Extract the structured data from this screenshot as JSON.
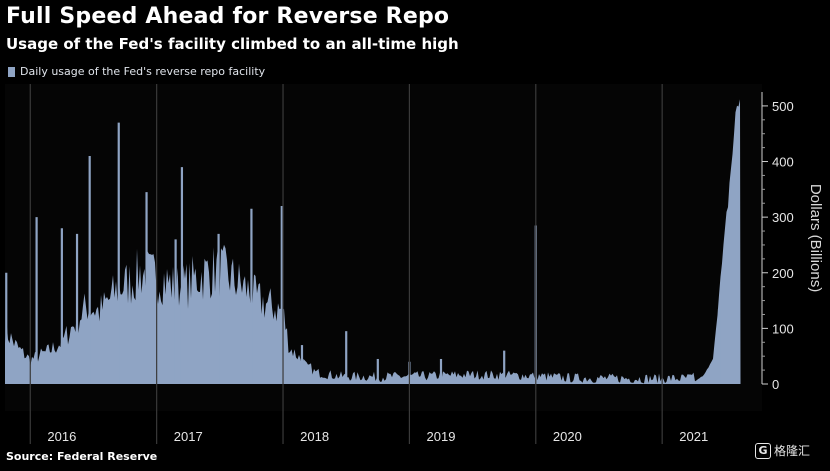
{
  "title": "Full Speed Ahead for Reverse Repo",
  "subtitle": "Usage of the Fed's facility climbed to an all-time high",
  "source": "Source: Federal Reserve",
  "watermark": {
    "logo_letter": "G",
    "text": "格隆汇"
  },
  "colors": {
    "bar": "#8fa4c4",
    "background": "#000000",
    "divider": "#3a3a3a",
    "text": "#ffffff"
  },
  "chart_data": {
    "type": "area",
    "legend": "Daily usage of the Fed's reverse repo facility",
    "ylabel": "Dollars (Billions)",
    "ylim": [
      0,
      525
    ],
    "yticks": [
      0,
      100,
      200,
      300,
      400,
      500
    ],
    "xlim": [
      2015.55,
      2021.54
    ],
    "year_labels": [
      {
        "label": "2016",
        "x": 2016.0
      },
      {
        "label": "2017",
        "x": 2017.0
      },
      {
        "label": "2018",
        "x": 2018.0
      },
      {
        "label": "2019",
        "x": 2019.0
      },
      {
        "label": "2020",
        "x": 2020.0
      },
      {
        "label": "2021",
        "x": 2021.0
      }
    ],
    "dividers": [
      2015.75,
      2016.75,
      2017.75,
      2018.75,
      2019.75,
      2020.75
    ],
    "baseline": [
      [
        2015.55,
        90
      ],
      [
        2015.65,
        60
      ],
      [
        2015.75,
        40
      ],
      [
        2015.9,
        55
      ],
      [
        2016.0,
        70
      ],
      [
        2016.1,
        100
      ],
      [
        2016.2,
        130
      ],
      [
        2016.3,
        120
      ],
      [
        2016.45,
        160
      ],
      [
        2016.55,
        170
      ],
      [
        2016.62,
        185
      ],
      [
        2016.7,
        180
      ],
      [
        2016.8,
        175
      ],
      [
        2016.9,
        160
      ],
      [
        2017.0,
        165
      ],
      [
        2017.05,
        175
      ],
      [
        2017.15,
        185
      ],
      [
        2017.25,
        190
      ],
      [
        2017.35,
        175
      ],
      [
        2017.45,
        160
      ],
      [
        2017.55,
        140
      ],
      [
        2017.65,
        130
      ],
      [
        2017.75,
        120
      ],
      [
        2017.8,
        60
      ],
      [
        2017.9,
        40
      ],
      [
        2018.0,
        12
      ],
      [
        2018.2,
        5
      ],
      [
        2018.5,
        4
      ],
      [
        2018.8,
        5
      ],
      [
        2019.0,
        6
      ],
      [
        2019.2,
        8
      ],
      [
        2019.5,
        7
      ],
      [
        2019.75,
        6
      ],
      [
        2019.8,
        5
      ],
      [
        2020.0,
        2
      ],
      [
        2020.5,
        1
      ],
      [
        2020.9,
        1
      ],
      [
        2021.0,
        3
      ],
      [
        2021.08,
        15
      ],
      [
        2021.15,
        40
      ],
      [
        2021.2,
        150
      ],
      [
        2021.25,
        260
      ],
      [
        2021.3,
        380
      ],
      [
        2021.34,
        470
      ],
      [
        2021.37,
        485
      ]
    ],
    "spikes": [
      {
        "x": 2015.56,
        "y": 200
      },
      {
        "x": 2015.8,
        "y": 300
      },
      {
        "x": 2016.0,
        "y": 280
      },
      {
        "x": 2016.12,
        "y": 270
      },
      {
        "x": 2016.22,
        "y": 410
      },
      {
        "x": 2016.45,
        "y": 470
      },
      {
        "x": 2016.67,
        "y": 345
      },
      {
        "x": 2016.9,
        "y": 260
      },
      {
        "x": 2016.95,
        "y": 390
      },
      {
        "x": 2017.24,
        "y": 270
      },
      {
        "x": 2017.5,
        "y": 315
      },
      {
        "x": 2017.74,
        "y": 320
      },
      {
        "x": 2017.9,
        "y": 70
      },
      {
        "x": 2018.25,
        "y": 95
      },
      {
        "x": 2018.5,
        "y": 45
      },
      {
        "x": 2018.75,
        "y": 40
      },
      {
        "x": 2019.0,
        "y": 45
      },
      {
        "x": 2019.5,
        "y": 60
      },
      {
        "x": 2019.75,
        "y": 285
      },
      {
        "x": 2021.2,
        "y": 135
      }
    ]
  }
}
